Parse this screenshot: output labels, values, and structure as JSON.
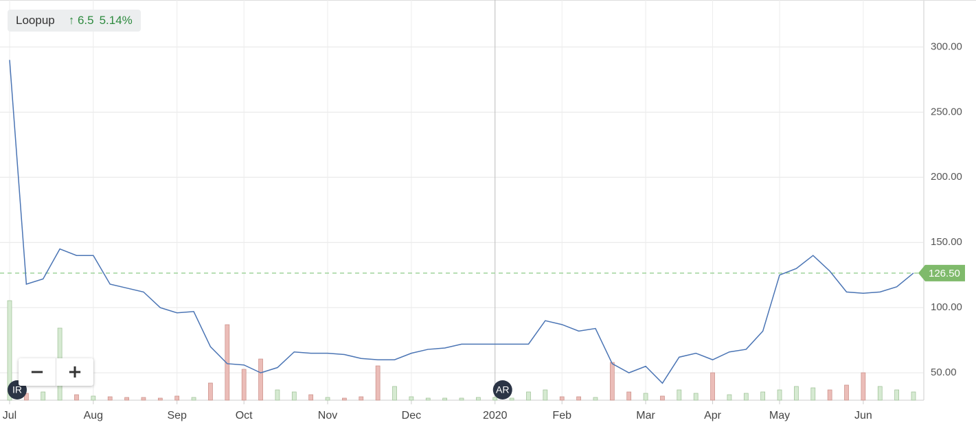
{
  "chart_data": {
    "type": "line",
    "title": "Loopup",
    "change": "↑ 6.5",
    "change_pct": "5.14%",
    "categories": [
      "Jul",
      null,
      null,
      null,
      null,
      "Aug",
      null,
      null,
      null,
      null,
      "Sep",
      null,
      null,
      null,
      "Oct",
      null,
      null,
      null,
      null,
      "Nov",
      null,
      null,
      null,
      null,
      "Dec",
      null,
      null,
      null,
      null,
      "2020",
      null,
      null,
      null,
      "Feb",
      null,
      null,
      null,
      null,
      "Mar",
      null,
      null,
      null,
      "Apr",
      null,
      null,
      null,
      "May",
      null,
      null,
      null,
      null,
      "Jun",
      null,
      null,
      null
    ],
    "values": [
      290,
      118,
      122,
      145,
      140,
      140,
      118,
      115,
      112,
      100,
      96,
      97,
      70,
      57,
      56,
      50,
      54,
      66,
      65,
      65,
      64,
      61,
      60,
      60,
      65,
      68,
      69,
      72,
      72,
      72,
      72,
      72,
      90,
      87,
      82,
      84,
      57,
      50,
      55,
      42,
      62,
      65,
      60,
      66,
      68,
      82,
      125,
      130,
      140,
      128,
      112,
      111,
      112,
      116,
      126.5
    ],
    "volume": [
      145,
      10,
      12,
      105,
      8,
      6,
      5,
      4,
      4,
      3,
      6,
      4,
      25,
      110,
      45,
      60,
      15,
      12,
      8,
      4,
      3,
      5,
      50,
      20,
      5,
      3,
      3,
      3,
      4,
      4,
      3,
      12,
      15,
      5,
      5,
      4,
      55,
      12,
      10,
      6,
      15,
      10,
      40,
      8,
      10,
      12,
      15,
      20,
      18,
      15,
      22,
      40,
      20,
      15,
      12
    ],
    "color": "#4a74b4",
    "volume_up_color": "#d6ead2",
    "volume_down_color": "#ebbdb8",
    "ylim": [
      29,
      336
    ],
    "yticks": [
      {
        "value": 50,
        "label": "50.00"
      },
      {
        "value": 100,
        "label": "100.00"
      },
      {
        "value": 150,
        "label": "150.00"
      },
      {
        "value": 200,
        "label": "200.00"
      },
      {
        "value": 250,
        "label": "250.00"
      },
      {
        "value": 300,
        "label": "300.00"
      }
    ],
    "grid": true,
    "last_price": {
      "value": 126.5,
      "label": "126.50"
    },
    "events": [
      {
        "label": "IR",
        "at": "Jul"
      },
      {
        "label": "AR",
        "at": "2020"
      }
    ],
    "controls": [
      "−",
      "+"
    ]
  }
}
